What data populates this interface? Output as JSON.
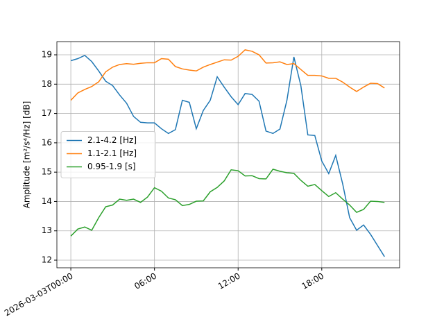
{
  "chart_data": {
    "type": "line",
    "y_label": "Amplitude [m²/s⁴/Hz] [dB]",
    "x": [
      "2026-03-03T00:00",
      "2026-03-03T00:30",
      "2026-03-03T01:00",
      "2026-03-03T01:30",
      "2026-03-03T02:00",
      "2026-03-03T02:30",
      "2026-03-03T03:00",
      "2026-03-03T03:30",
      "2026-03-03T04:00",
      "2026-03-03T04:30",
      "2026-03-03T05:00",
      "2026-03-03T05:30",
      "2026-03-03T06:00",
      "2026-03-03T06:30",
      "2026-03-03T07:00",
      "2026-03-03T07:30",
      "2026-03-03T08:00",
      "2026-03-03T08:30",
      "2026-03-03T09:00",
      "2026-03-03T09:30",
      "2026-03-03T10:00",
      "2026-03-03T10:30",
      "2026-03-03T11:00",
      "2026-03-03T11:30",
      "2026-03-03T12:00",
      "2026-03-03T12:30",
      "2026-03-03T13:00",
      "2026-03-03T13:30",
      "2026-03-03T14:00",
      "2026-03-03T14:30",
      "2026-03-03T15:00",
      "2026-03-03T15:30",
      "2026-03-03T16:00",
      "2026-03-03T16:30",
      "2026-03-03T17:00",
      "2026-03-03T17:30",
      "2026-03-03T18:00",
      "2026-03-03T18:30",
      "2026-03-03T19:00",
      "2026-03-03T19:30",
      "2026-03-03T20:00",
      "2026-03-03T20:30",
      "2026-03-03T21:00",
      "2026-03-03T21:30",
      "2026-03-03T22:00",
      "2026-03-03T22:30"
    ],
    "series": [
      {
        "name": "2.1-4.2 [Hz]",
        "color": "#1f77b4",
        "values": [
          18.8,
          18.87,
          18.98,
          18.77,
          18.45,
          18.1,
          17.95,
          17.63,
          17.35,
          16.9,
          16.7,
          16.68,
          16.68,
          16.48,
          16.32,
          16.45,
          17.45,
          17.38,
          16.48,
          17.1,
          17.45,
          18.25,
          17.9,
          17.57,
          17.3,
          17.68,
          17.65,
          17.42,
          16.4,
          16.32,
          16.47,
          17.45,
          18.93,
          17.95,
          16.27,
          16.25,
          15.38,
          14.95,
          15.57,
          14.6,
          13.45,
          13.02,
          13.2,
          12.88,
          12.5,
          12.12
        ]
      },
      {
        "name": "1.1-2.1 [Hz]",
        "color": "#ff7f0e",
        "values": [
          17.45,
          17.7,
          17.82,
          17.92,
          18.08,
          18.42,
          18.58,
          18.67,
          18.7,
          18.68,
          18.71,
          18.73,
          18.73,
          18.87,
          18.85,
          18.6,
          18.52,
          18.48,
          18.45,
          18.58,
          18.67,
          18.75,
          18.83,
          18.82,
          18.95,
          19.17,
          19.12,
          19.0,
          18.72,
          18.73,
          18.76,
          18.67,
          18.7,
          18.5,
          18.3,
          18.3,
          18.28,
          18.2,
          18.2,
          18.07,
          17.9,
          17.75,
          17.9,
          18.03,
          18.02,
          17.87
        ]
      },
      {
        "name": "0.95-1.9 [s]",
        "color": "#2ca02c",
        "values": [
          12.82,
          13.06,
          13.13,
          13.02,
          13.45,
          13.82,
          13.88,
          14.08,
          14.04,
          14.08,
          13.97,
          14.15,
          14.47,
          14.35,
          14.12,
          14.06,
          13.86,
          13.9,
          14.01,
          14.02,
          14.33,
          14.48,
          14.7,
          15.08,
          15.05,
          14.87,
          14.88,
          14.78,
          14.77,
          15.1,
          15.03,
          14.98,
          14.96,
          14.72,
          14.52,
          14.58,
          14.37,
          14.17,
          14.3,
          14.08,
          13.88,
          13.63,
          13.73,
          14.01,
          14.0,
          13.97
        ]
      }
    ],
    "xlim": [
      "2026-03-02T23:00",
      "2026-03-03T23:35"
    ],
    "xticks": [
      {
        "value": "2026-03-03T00:00",
        "label": "2026-03-03T00:00"
      },
      {
        "value": "2026-03-03T06:00",
        "label": "06:00"
      },
      {
        "value": "2026-03-03T12:00",
        "label": "12:00"
      },
      {
        "value": "2026-03-03T18:00",
        "label": "18:00"
      }
    ],
    "ylim": [
      11.74,
      19.45
    ],
    "yticks": [
      12,
      13,
      14,
      15,
      16,
      17,
      18,
      19
    ],
    "grid": true,
    "legend": "center left"
  }
}
